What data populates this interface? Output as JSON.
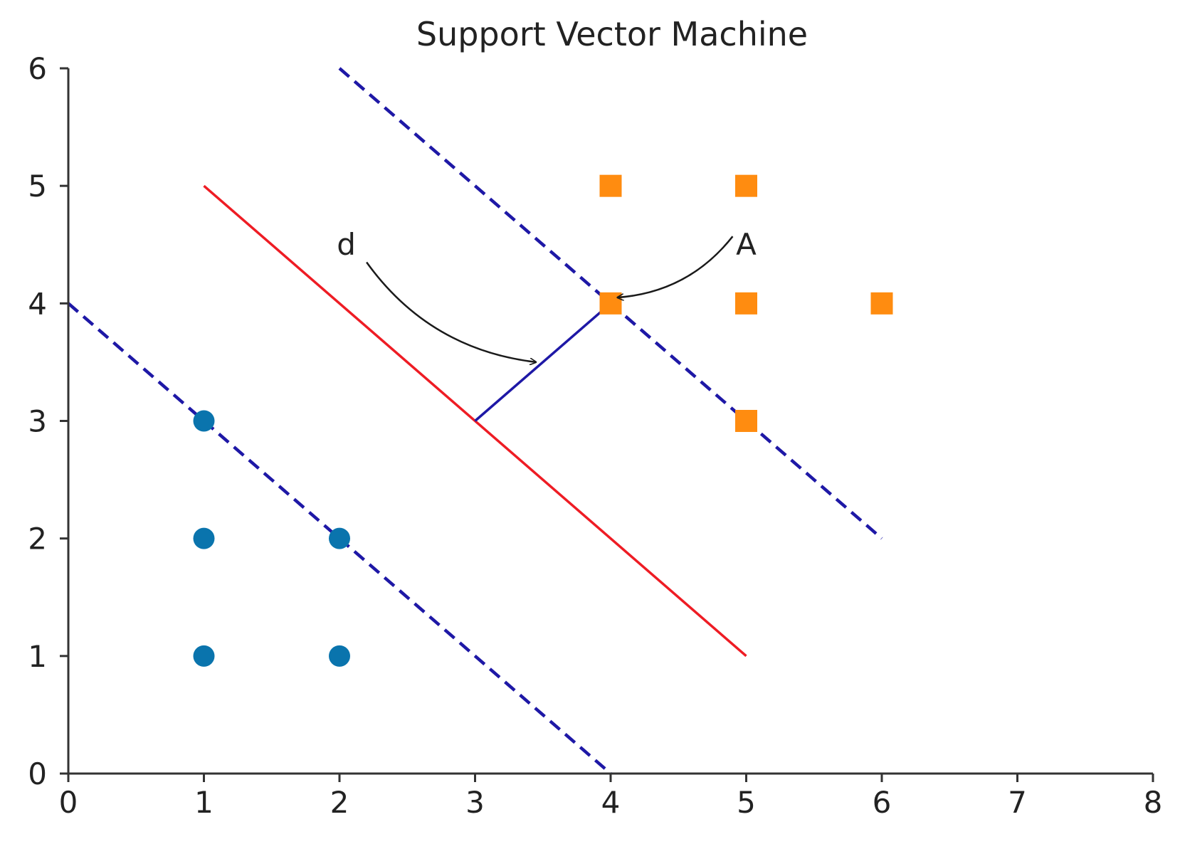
{
  "chart_data": {
    "type": "scatter",
    "title": "Support Vector Machine",
    "xlabel": "",
    "ylabel": "",
    "xlim": [
      0,
      8
    ],
    "ylim": [
      0,
      6
    ],
    "x_ticks": [
      0,
      1,
      2,
      3,
      4,
      5,
      6,
      7,
      8
    ],
    "y_ticks": [
      0,
      1,
      2,
      3,
      4,
      5,
      6
    ],
    "grid": false,
    "series": [
      {
        "marker": "circle",
        "color": "#0a74ad",
        "points": [
          [
            1,
            3
          ],
          [
            1,
            2
          ],
          [
            1,
            1
          ],
          [
            2,
            2
          ],
          [
            2,
            1
          ]
        ]
      },
      {
        "marker": "square",
        "color": "#ff8c10",
        "points": [
          [
            4,
            5
          ],
          [
            5,
            5
          ],
          [
            4,
            4
          ],
          [
            5,
            4
          ],
          [
            6,
            4
          ],
          [
            5,
            3
          ]
        ]
      }
    ],
    "lines": [
      {
        "style": "solid",
        "color": "#ee1c24",
        "points": [
          [
            1,
            5
          ],
          [
            5,
            1
          ]
        ]
      },
      {
        "style": "dashed",
        "color": "#1e18a6",
        "points": [
          [
            0,
            4
          ],
          [
            4,
            0
          ]
        ]
      },
      {
        "style": "dashed",
        "color": "#1e18a6",
        "points": [
          [
            2,
            6
          ],
          [
            6,
            2
          ]
        ]
      },
      {
        "style": "solid",
        "color": "#1e18a6",
        "points": [
          [
            3,
            3
          ],
          [
            4,
            4
          ]
        ]
      }
    ],
    "annotations": [
      {
        "text": "d",
        "text_at": [
          2.05,
          4.5
        ],
        "arrow_from": [
          2.2,
          4.35
        ],
        "arrow_to": [
          3.45,
          3.5
        ]
      },
      {
        "text": "A",
        "text_at": [
          5.0,
          4.5
        ],
        "arrow_from": [
          4.9,
          4.57
        ],
        "arrow_to": [
          4.05,
          4.05
        ]
      }
    ]
  }
}
